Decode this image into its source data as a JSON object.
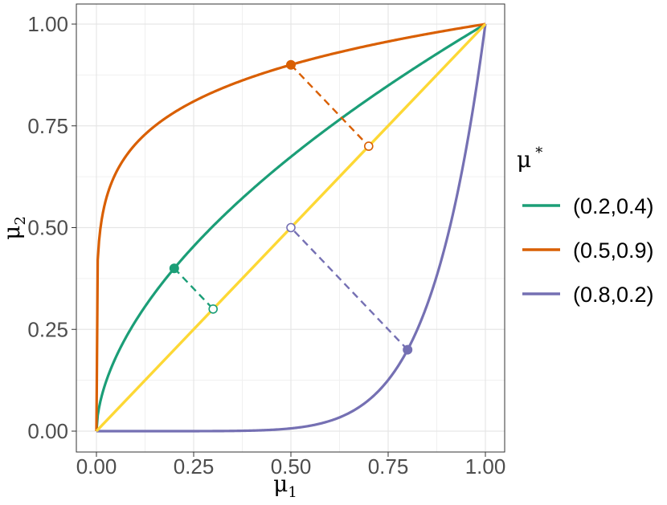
{
  "chart_data": {
    "type": "line",
    "xlabel": "μ",
    "xlabel_sub": "1",
    "ylabel": "μ",
    "ylabel_sub": "2",
    "xlim": [
      0,
      1
    ],
    "ylim": [
      0,
      1
    ],
    "x_ticks": [
      0,
      0.25,
      0.5,
      0.75,
      1
    ],
    "x_tick_labels": [
      "0.00",
      "0.25",
      "0.50",
      "0.75",
      "1.00"
    ],
    "y_ticks": [
      0,
      0.25,
      0.5,
      0.75,
      1
    ],
    "y_tick_labels": [
      "0.00",
      "0.25",
      "0.50",
      "0.75",
      "1.00"
    ],
    "grid": true,
    "legend": {
      "title": "μ",
      "title_sup": "*",
      "position": "right"
    },
    "diagonal": {
      "color": "#fdd835",
      "points": [
        [
          0,
          0
        ],
        [
          1,
          1
        ]
      ]
    },
    "series": [
      {
        "name": "(0.2,0.4)",
        "color": "#1b9e77",
        "mu_star": [
          0.2,
          0.4
        ],
        "projection": [
          0.3,
          0.3
        ]
      },
      {
        "name": "(0.5,0.9)",
        "color": "#d95f02",
        "mu_star": [
          0.5,
          0.9
        ],
        "projection": [
          0.7,
          0.7
        ]
      },
      {
        "name": "(0.8,0.2)",
        "color": "#7570b3",
        "mu_star": [
          0.8,
          0.2
        ],
        "projection": [
          0.5,
          0.5
        ]
      }
    ]
  }
}
